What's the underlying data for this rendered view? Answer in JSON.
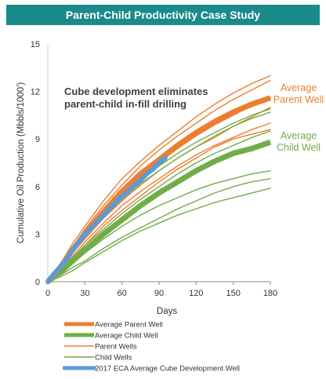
{
  "colors": {
    "title_bg": "#1b8a8a",
    "parent": "#ed7d31",
    "child": "#70ad47",
    "cube": "#5b9bd5"
  },
  "chart_data": {
    "type": "line",
    "title": "Parent-Child Productivity Case Study",
    "xlabel": "Days",
    "ylabel": "Cumulative Oil Production (Mbbls/1000')",
    "xlim": [
      0,
      180
    ],
    "ylim": [
      0,
      15
    ],
    "x_ticks": [
      0,
      30,
      60,
      90,
      120,
      150,
      180
    ],
    "y_ticks": [
      0,
      3,
      6,
      9,
      12,
      15
    ],
    "grid": false,
    "legend_position": "bottom",
    "annotation": [
      "Cube development eliminates",
      "parent-child in-fill drilling"
    ],
    "end_labels": [
      {
        "text": [
          "Average",
          "Parent Well"
        ],
        "series": "Average Parent Well"
      },
      {
        "text": [
          "Average",
          "Child Well"
        ],
        "series": "Average Child Well"
      }
    ],
    "x": [
      0,
      10,
      20,
      30,
      45,
      60,
      75,
      90,
      105,
      120,
      135,
      150,
      165,
      180
    ],
    "series": [
      {
        "name": "Average Parent Well",
        "style": "avg",
        "color_key": "parent",
        "values": [
          0,
          0.9,
          2.0,
          3.0,
          4.4,
          5.7,
          6.8,
          7.7,
          8.6,
          9.4,
          10.1,
          10.7,
          11.2,
          11.6
        ]
      },
      {
        "name": "Average Child Well",
        "style": "avg",
        "color_key": "child",
        "values": [
          0,
          0.6,
          1.3,
          2.0,
          3.0,
          3.9,
          4.8,
          5.6,
          6.3,
          7.0,
          7.6,
          8.1,
          8.4,
          8.8
        ]
      },
      {
        "name": "Parent Wells",
        "style": "thin",
        "color_key": "parent",
        "group": [
          [
            0,
            1.1,
            2.4,
            3.5,
            5.1,
            6.5,
            7.6,
            8.6,
            9.5,
            10.4,
            11.2,
            11.9,
            12.5,
            13.0
          ],
          [
            0,
            1.0,
            2.2,
            3.3,
            4.8,
            6.1,
            7.3,
            8.3,
            9.2,
            10.0,
            10.8,
            11.5,
            12.1,
            12.7
          ],
          [
            0,
            0.9,
            1.9,
            2.9,
            4.3,
            5.5,
            6.6,
            7.5,
            8.4,
            9.2,
            9.9,
            10.5,
            11.1,
            11.6
          ],
          [
            0,
            0.8,
            1.8,
            2.7,
            4.0,
            5.1,
            6.1,
            7.0,
            7.8,
            8.5,
            9.1,
            9.8,
            10.4,
            11.0
          ],
          [
            0,
            0.7,
            1.6,
            2.5,
            3.7,
            4.8,
            5.7,
            6.5,
            7.3,
            8.0,
            8.6,
            9.1,
            9.6,
            10.0
          ],
          [
            0,
            0.7,
            1.5,
            2.3,
            3.5,
            4.5,
            5.4,
            6.3,
            7.1,
            7.8,
            8.5,
            9.0,
            9.3,
            9.6
          ]
        ]
      },
      {
        "name": "Child Wells",
        "style": "thin",
        "color_key": "child",
        "group": [
          [
            0,
            0.9,
            1.9,
            3.0,
            4.4,
            5.5,
            6.5,
            7.3,
            8.1,
            8.8,
            9.4,
            10.0,
            10.5,
            10.9
          ],
          [
            0,
            0.8,
            1.8,
            2.8,
            4.1,
            5.2,
            6.2,
            7.0,
            7.8,
            8.5,
            9.2,
            9.8,
            10.3,
            10.7
          ],
          [
            0,
            0.7,
            1.5,
            2.3,
            3.3,
            4.3,
            5.2,
            6.0,
            6.8,
            7.5,
            8.1,
            8.6,
            9.1,
            9.5
          ],
          [
            0,
            0.6,
            1.2,
            1.8,
            2.7,
            3.5,
            4.2,
            4.8,
            5.3,
            5.8,
            6.2,
            6.5,
            6.8,
            7.0
          ],
          [
            0,
            0.4,
            0.9,
            1.3,
            2.1,
            2.8,
            3.4,
            4.0,
            4.6,
            5.1,
            5.6,
            6.0,
            6.3,
            6.5
          ],
          [
            0,
            0.3,
            0.7,
            1.2,
            1.9,
            2.6,
            3.2,
            3.7,
            4.2,
            4.6,
            5.0,
            5.3,
            5.6,
            5.9
          ]
        ]
      },
      {
        "name": "2017 ECA Average Cube Development Well",
        "style": "cube",
        "color_key": "cube",
        "x": [
          0,
          5,
          10,
          15,
          20,
          25,
          30,
          35,
          40,
          45,
          50,
          55,
          60,
          65,
          70,
          75,
          80,
          85,
          90,
          95
        ],
        "values": [
          0,
          0.5,
          0.9,
          1.4,
          2.0,
          2.5,
          3.0,
          3.4,
          3.8,
          4.2,
          4.6,
          5.0,
          5.4,
          5.7,
          6.1,
          6.4,
          6.8,
          7.1,
          7.5,
          7.8
        ]
      }
    ],
    "legend": [
      {
        "label": "Average Parent Well",
        "style": "avg",
        "color_key": "parent"
      },
      {
        "label": "Average Child Well",
        "style": "avg",
        "color_key": "child"
      },
      {
        "label": "Parent Wells",
        "style": "thin",
        "color_key": "parent"
      },
      {
        "label": "Child Wells",
        "style": "thin",
        "color_key": "child"
      },
      {
        "label": "2017 ECA Average Cube Development Well",
        "style": "cube",
        "color_key": "cube"
      }
    ]
  }
}
